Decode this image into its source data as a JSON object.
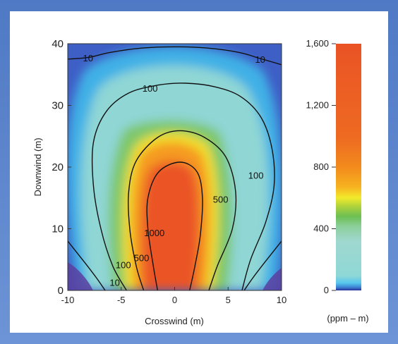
{
  "chart_data": {
    "type": "heatmap",
    "title": "",
    "xlabel": "Crosswind (m)",
    "ylabel": "Downwind (m)",
    "xlim": [
      -10,
      10
    ],
    "ylim": [
      0,
      40
    ],
    "xticks": [
      "-10",
      "-5",
      "0",
      "5",
      "10"
    ],
    "xtick_values": [
      -10,
      -5,
      0,
      5,
      10
    ],
    "yticks": [
      "0",
      "10",
      "20",
      "30",
      "40"
    ],
    "ytick_values": [
      0,
      10,
      20,
      30,
      40
    ],
    "colorbar": {
      "label": "(ppm – m)",
      "range": [
        0,
        1600
      ],
      "ticks": [
        "0",
        "400",
        "800",
        "1,200",
        "1,600"
      ],
      "tick_values": [
        0,
        400,
        800,
        1200,
        1600
      ]
    },
    "contours": [
      {
        "level": 10,
        "label": "10",
        "segments": [
          [
            [
              -10,
              37.5
            ],
            [
              -8,
              37.8
            ],
            [
              -6,
              38.6
            ],
            [
              -3,
              39.3
            ],
            [
              0,
              39.5
            ],
            [
              3,
              39.3
            ],
            [
              6,
              38.6
            ],
            [
              8,
              37.6
            ],
            [
              10,
              36.6
            ]
          ],
          [
            [
              -6.5,
              0
            ],
            [
              -7.3,
              2
            ],
            [
              -8.4,
              4.5
            ],
            [
              -10,
              8
            ]
          ],
          [
            [
              6.5,
              0
            ],
            [
              7.3,
              2
            ],
            [
              8.4,
              4.5
            ],
            [
              10,
              8
            ]
          ]
        ],
        "labels_at": [
          [
            -8.1,
            37.7
          ],
          [
            8.0,
            37.5
          ],
          [
            -5.6,
            1.3
          ]
        ]
      },
      {
        "level": 100,
        "label": "100",
        "segments": [
          [
            [
              -4.5,
              0
            ],
            [
              -5.8,
              4
            ],
            [
              -6.9,
              10
            ],
            [
              -7.6,
              17
            ],
            [
              -7.6,
              24
            ],
            [
              -6.4,
              29
            ],
            [
              -4.3,
              32
            ],
            [
              -1.5,
              33.3
            ],
            [
              1,
              33.6
            ],
            [
              3.8,
              33
            ],
            [
              6.2,
              31.4
            ],
            [
              8.1,
              28
            ],
            [
              9.1,
              23
            ],
            [
              9.3,
              17
            ],
            [
              8.5,
              11
            ],
            [
              7.1,
              5
            ],
            [
              6.3,
              0
            ]
          ]
        ],
        "labels_at": [
          [
            -2.3,
            32.8
          ],
          [
            7.6,
            18.7
          ],
          [
            -4.8,
            4.2
          ]
        ]
      },
      {
        "level": 500,
        "label": "500",
        "segments": [
          [
            [
              -2.9,
              0
            ],
            [
              -3.6,
              4
            ],
            [
              -4.2,
              10
            ],
            [
              -4.3,
              16
            ],
            [
              -3.6,
              21
            ],
            [
              -1.6,
              24.8
            ],
            [
              0.5,
              25.9
            ],
            [
              2.8,
              24.8
            ],
            [
              4.8,
              21.6
            ],
            [
              5.7,
              16
            ],
            [
              5.4,
              10
            ],
            [
              4.0,
              4
            ],
            [
              3.2,
              0
            ]
          ]
        ],
        "labels_at": [
          [
            -3.1,
            5.3
          ],
          [
            4.3,
            14.8
          ]
        ]
      },
      {
        "level": 1000,
        "label": "1000",
        "segments": [
          [
            [
              -1.6,
              0
            ],
            [
              -2.0,
              4
            ],
            [
              -2.5,
              10
            ],
            [
              -2.5,
              15
            ],
            [
              -1.5,
              19.2
            ],
            [
              0.5,
              20.8
            ],
            [
              2.1,
              19.2
            ],
            [
              2.6,
              15
            ],
            [
              2.4,
              9
            ],
            [
              1.9,
              4
            ],
            [
              1.4,
              0
            ]
          ]
        ],
        "labels_at": [
          [
            -1.9,
            9.4
          ]
        ]
      }
    ]
  }
}
